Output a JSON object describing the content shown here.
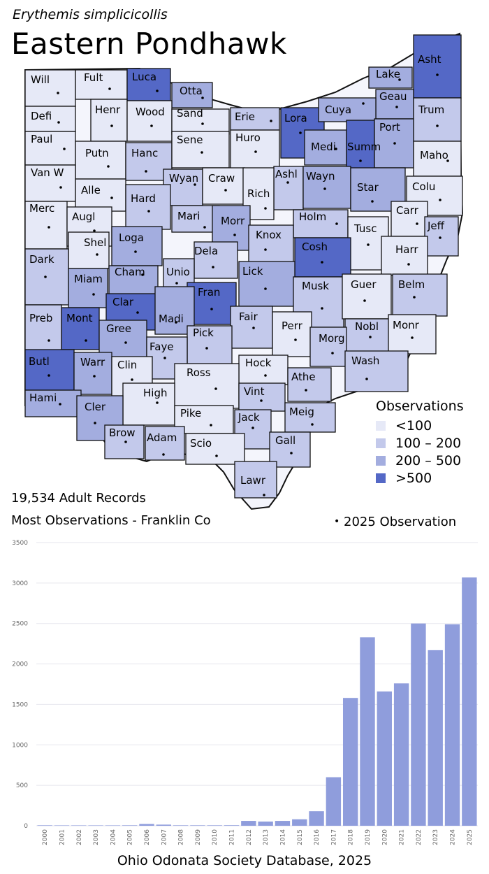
{
  "header": {
    "scientific_name": "Erythemis simplicicollis",
    "common_name": "Eastern Pondhawk"
  },
  "map": {
    "counties": [
      {
        "name": "Will",
        "cat": 0
      },
      {
        "name": "Fult",
        "cat": 0
      },
      {
        "name": "Luca",
        "cat": 3
      },
      {
        "name": "Otta",
        "cat": 2
      },
      {
        "name": "Lake",
        "cat": 2
      },
      {
        "name": "Asht",
        "cat": 3
      },
      {
        "name": "Geau",
        "cat": 2
      },
      {
        "name": "Defi",
        "cat": 0
      },
      {
        "name": "Henr",
        "cat": 0
      },
      {
        "name": "Wood",
        "cat": 0
      },
      {
        "name": "Sand",
        "cat": 0
      },
      {
        "name": "Erie",
        "cat": 1
      },
      {
        "name": "Lora",
        "cat": 3
      },
      {
        "name": "Cuya",
        "cat": 2
      },
      {
        "name": "Trum",
        "cat": 1
      },
      {
        "name": "Paul",
        "cat": 0
      },
      {
        "name": "Putn",
        "cat": 0
      },
      {
        "name": "Hanc",
        "cat": 1
      },
      {
        "name": "Sene",
        "cat": 0
      },
      {
        "name": "Huro",
        "cat": 0
      },
      {
        "name": "Medi",
        "cat": 2
      },
      {
        "name": "Summ",
        "cat": 3
      },
      {
        "name": "Port",
        "cat": 2
      },
      {
        "name": "Maho",
        "cat": 0
      },
      {
        "name": "Van W",
        "cat": 0
      },
      {
        "name": "Alle",
        "cat": 0
      },
      {
        "name": "Wyan",
        "cat": 1
      },
      {
        "name": "Craw",
        "cat": 0
      },
      {
        "name": "Ashl",
        "cat": 1
      },
      {
        "name": "Wayn",
        "cat": 2
      },
      {
        "name": "Star",
        "cat": 2
      },
      {
        "name": "Colu",
        "cat": 0
      },
      {
        "name": "Hard",
        "cat": 1
      },
      {
        "name": "Rich",
        "cat": 0
      },
      {
        "name": "Merc",
        "cat": 0
      },
      {
        "name": "Augl",
        "cat": 0
      },
      {
        "name": "Mari",
        "cat": 1
      },
      {
        "name": "Morr",
        "cat": 2
      },
      {
        "name": "Holm",
        "cat": 1
      },
      {
        "name": "Carr",
        "cat": 0
      },
      {
        "name": "Tusc",
        "cat": 0
      },
      {
        "name": "Jeff",
        "cat": 1
      },
      {
        "name": "Shel",
        "cat": 0
      },
      {
        "name": "Loga",
        "cat": 2
      },
      {
        "name": "Knox",
        "cat": 1
      },
      {
        "name": "Dela",
        "cat": 1
      },
      {
        "name": "Cosh",
        "cat": 3
      },
      {
        "name": "Harr",
        "cat": 0
      },
      {
        "name": "Dark",
        "cat": 1
      },
      {
        "name": "Miam",
        "cat": 2
      },
      {
        "name": "Cham",
        "cat": 2
      },
      {
        "name": "Unio",
        "cat": 1
      },
      {
        "name": "Lick",
        "cat": 2
      },
      {
        "name": "Musk",
        "cat": 1
      },
      {
        "name": "Guer",
        "cat": 0
      },
      {
        "name": "Belm",
        "cat": 1
      },
      {
        "name": "Clar",
        "cat": 3
      },
      {
        "name": "Fran",
        "cat": 3
      },
      {
        "name": "Mont",
        "cat": 3
      },
      {
        "name": "Madi",
        "cat": 2
      },
      {
        "name": "Fair",
        "cat": 1
      },
      {
        "name": "Perr",
        "cat": 0
      },
      {
        "name": "Nobl",
        "cat": 1
      },
      {
        "name": "Monr",
        "cat": 0
      },
      {
        "name": "Preb",
        "cat": 1
      },
      {
        "name": "Gree",
        "cat": 2
      },
      {
        "name": "Pick",
        "cat": 1
      },
      {
        "name": "Morg",
        "cat": 1
      },
      {
        "name": "Faye",
        "cat": 1
      },
      {
        "name": "Butl",
        "cat": 3
      },
      {
        "name": "Warr",
        "cat": 2
      },
      {
        "name": "Clin",
        "cat": 0
      },
      {
        "name": "Hock",
        "cat": 0
      },
      {
        "name": "Wash",
        "cat": 1
      },
      {
        "name": "Ross",
        "cat": 0
      },
      {
        "name": "Athe",
        "cat": 1
      },
      {
        "name": "Hami",
        "cat": 2
      },
      {
        "name": "Vint",
        "cat": 1
      },
      {
        "name": "High",
        "cat": 0
      },
      {
        "name": "Cler",
        "cat": 2
      },
      {
        "name": "Meig",
        "cat": 1
      },
      {
        "name": "Pike",
        "cat": 0
      },
      {
        "name": "Jack",
        "cat": 1
      },
      {
        "name": "Brow",
        "cat": 1
      },
      {
        "name": "Adam",
        "cat": 1
      },
      {
        "name": "Gall",
        "cat": 1
      },
      {
        "name": "Scio",
        "cat": 0
      },
      {
        "name": "Lawr",
        "cat": 1
      }
    ]
  },
  "legend": {
    "title": "Observations",
    "items": [
      {
        "label": "<100",
        "color": "#e6e9f7"
      },
      {
        "label": "100 – 200",
        "color": "#c3c9eb"
      },
      {
        "label": "200 – 500",
        "color": "#a3addf"
      },
      {
        "label": ">500",
        "color": "#5468c6"
      }
    ],
    "marker_label": "2025 Observation"
  },
  "summary": {
    "records": "19,534 Adult Records",
    "most": "Most Observations - Franklin Co"
  },
  "chart_data": {
    "type": "bar",
    "categories": [
      "2000",
      "2001",
      "2002",
      "2003",
      "2004",
      "2005",
      "2006",
      "2007",
      "2008",
      "2009",
      "2010",
      "2011",
      "2012",
      "2013",
      "2014",
      "2015",
      "2016",
      "2017",
      "2018",
      "2019",
      "2020",
      "2021",
      "2022",
      "2023",
      "2024",
      "2025"
    ],
    "values": [
      6,
      5,
      5,
      5,
      5,
      6,
      22,
      14,
      6,
      6,
      6,
      7,
      60,
      52,
      60,
      80,
      180,
      600,
      1580,
      2330,
      1660,
      1760,
      2500,
      2170,
      2490,
      3070
    ],
    "ylim": [
      0,
      3500
    ],
    "yticks": [
      0,
      500,
      1000,
      1500,
      2000,
      2500,
      3000,
      3500
    ],
    "bar_color": "#8f9ddc",
    "grid": true,
    "title": "",
    "xlabel": "",
    "ylabel": ""
  },
  "footer": {
    "source": "Ohio Odonata Society Database, 2025"
  }
}
